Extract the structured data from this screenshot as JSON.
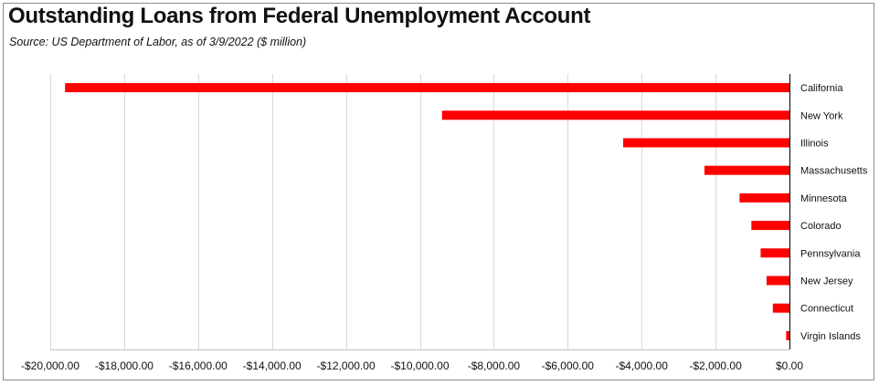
{
  "chart_data": {
    "type": "bar",
    "orientation": "horizontal",
    "title": "Outstanding Loans from Federal Unemployment Account",
    "subtitle": "Source:  US Department of Labor, as of 3/9/2022  ($ million)",
    "categories": [
      "California",
      "New York",
      "Illinois",
      "Massachusetts",
      "Minnesota",
      "Colorado",
      "Pennsylvania",
      "New Jersey",
      "Connecticut",
      "Virgin Islands"
    ],
    "values": [
      -19600,
      -9400,
      -4500,
      -2300,
      -1350,
      -1030,
      -780,
      -620,
      -450,
      -90
    ],
    "xlim": [
      -20000,
      0
    ],
    "xticks": [
      -20000,
      -18000,
      -16000,
      -14000,
      -12000,
      -10000,
      -8000,
      -6000,
      -4000,
      -2000,
      0
    ],
    "xtick_labels": [
      "-$20,000.00",
      "-$18,000.00",
      "-$16,000.00",
      "-$14,000.00",
      "-$12,000.00",
      "-$10,000.00",
      "-$8,000.00",
      "-$6,000.00",
      "-$4,000.00",
      "-$2,000.00",
      "$0.00"
    ],
    "grid": true,
    "bar_color": "#ff0000",
    "grid_color": "#d9d9d9",
    "axis_color": "#000000"
  }
}
